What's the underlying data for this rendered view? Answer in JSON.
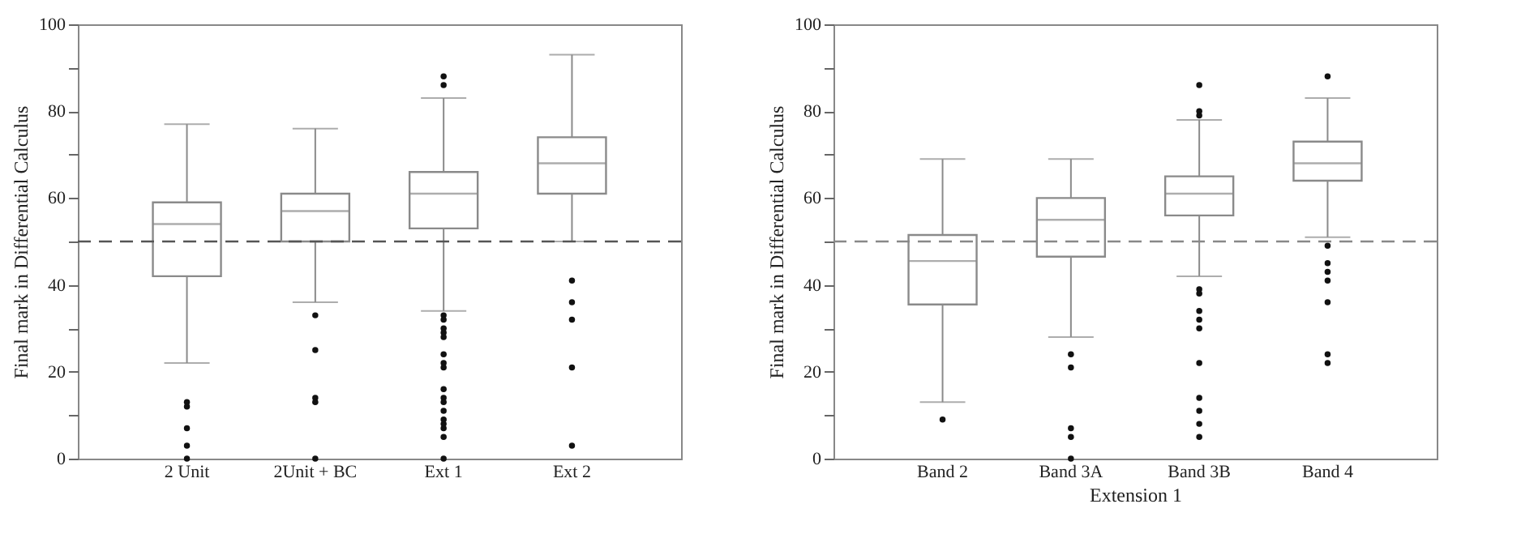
{
  "chart_data": [
    {
      "type": "box",
      "ylabel": "Final mark in Differential Calculus",
      "categories": [
        "2 Unit",
        "2Unit + BC",
        "Ext 1",
        "Ext 2"
      ],
      "series": [
        {
          "color": "#8a8a8a",
          "boxes": [
            {
              "low": 22,
              "q1": 42,
              "median": 54,
              "q3": 59,
              "high": 77,
              "outliers": [
                13,
                12,
                7,
                3,
                0
              ]
            },
            {
              "low": 36,
              "q1": 50,
              "median": 57,
              "q3": 61,
              "high": 76,
              "outliers": [
                33,
                25,
                14,
                13,
                0
              ]
            },
            {
              "low": 34,
              "q1": 53,
              "median": 61,
              "q3": 66,
              "high": 83,
              "outliers": [
                88,
                86,
                33,
                32,
                30,
                29,
                28,
                24,
                22,
                21,
                16,
                14,
                13,
                11,
                9,
                8,
                7,
                5,
                0
              ]
            },
            {
              "low": 50,
              "q1": 61,
              "median": 68,
              "q3": 74,
              "high": 93,
              "outliers": [
                41,
                36,
                32,
                21,
                3
              ]
            }
          ]
        }
      ],
      "ylim": [
        0,
        100
      ],
      "yticks": [
        0,
        {
          "value": 10,
          "label": null
        },
        20,
        {
          "value": 30,
          "label": null
        },
        40,
        {
          "value": 50,
          "label": null
        },
        60,
        {
          "value": 70,
          "label": null
        },
        80,
        {
          "value": 90,
          "label": null
        },
        100
      ],
      "ref_lines": [
        {
          "axis": "y",
          "value": 50,
          "color": "#555555",
          "line_style": "dashed"
        }
      ],
      "grid": false,
      "legend": false
    },
    {
      "type": "box",
      "xlabel": "Extension 1",
      "ylabel": "Final mark in Differential Calculus",
      "categories": [
        "Band 2",
        "Band 3A",
        "Band 3B",
        "Band 4"
      ],
      "series": [
        {
          "color": "#8a8a8a",
          "boxes": [
            {
              "low": 13,
              "q1": 35.5,
              "median": 45.5,
              "q3": 51.5,
              "high": 69,
              "outliers": [
                9
              ]
            },
            {
              "low": 28,
              "q1": 46.5,
              "median": 55,
              "q3": 60,
              "high": 69,
              "outliers": [
                24,
                21,
                7,
                5,
                0
              ]
            },
            {
              "low": 42,
              "q1": 56,
              "median": 61,
              "q3": 65,
              "high": 78,
              "outliers": [
                86,
                80,
                79,
                39,
                38,
                34,
                32,
                30,
                22,
                14,
                11,
                8,
                5
              ]
            },
            {
              "low": 51,
              "q1": 64,
              "median": 68,
              "q3": 73,
              "high": 83,
              "outliers": [
                88,
                49,
                45,
                43,
                41,
                36,
                24,
                22
              ]
            }
          ]
        }
      ],
      "ylim": [
        0,
        100
      ],
      "yticks": [
        0,
        {
          "value": 10,
          "label": null
        },
        20,
        {
          "value": 30,
          "label": null
        },
        40,
        {
          "value": 50,
          "label": null
        },
        60,
        {
          "value": 70,
          "label": null
        },
        80,
        {
          "value": 90,
          "label": null
        },
        100
      ],
      "ref_lines": [
        {
          "axis": "y",
          "value": 50,
          "color": "#888888",
          "line_style": "dashed"
        }
      ],
      "grid": false,
      "legend": false
    }
  ]
}
